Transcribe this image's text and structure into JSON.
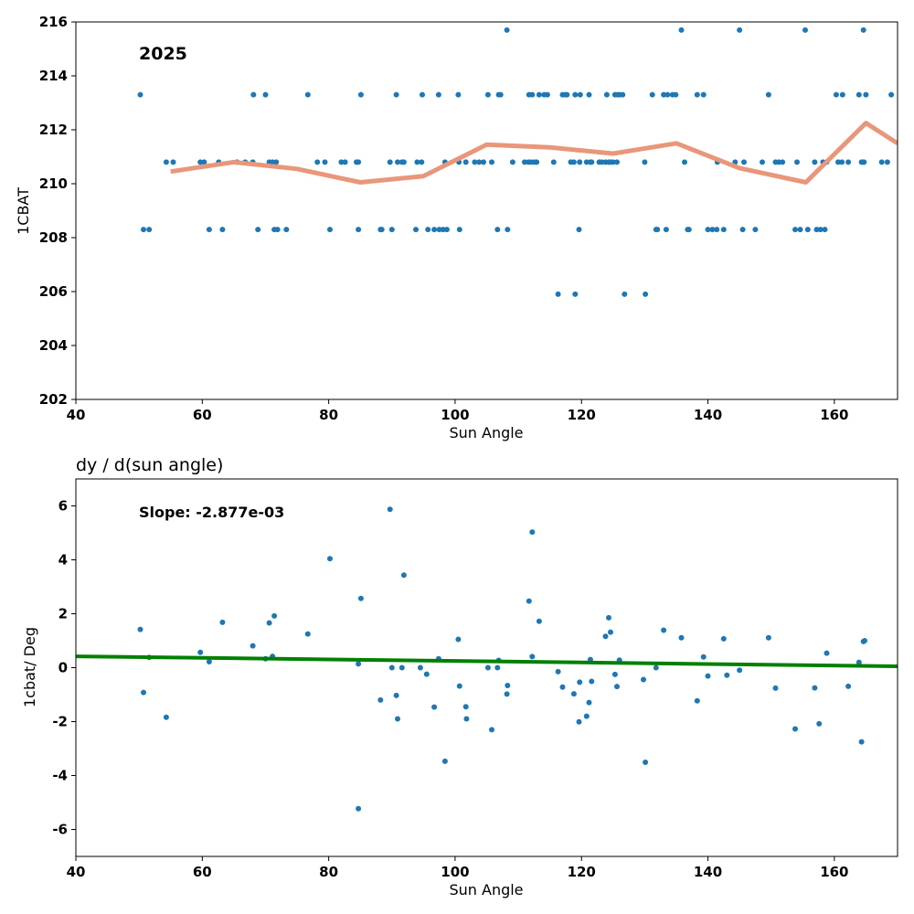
{
  "chart_data": [
    {
      "type": "scatter",
      "title": "",
      "annotation": "2025",
      "xlabel": "Sun Angle",
      "ylabel": "1CBAT",
      "xlim": [
        40,
        170
      ],
      "ylim": [
        202,
        216
      ],
      "xticks": [
        40,
        60,
        80,
        100,
        120,
        140,
        160
      ],
      "yticks": [
        202,
        204,
        206,
        208,
        210,
        212,
        214,
        216
      ],
      "grid": false,
      "point_color": "#1f77b4",
      "points": [
        [
          50.2,
          213.3
        ],
        [
          50.7,
          208.3
        ],
        [
          51.6,
          208.3
        ],
        [
          54.3,
          210.8
        ],
        [
          55.4,
          210.8
        ],
        [
          59.7,
          210.8
        ],
        [
          60.3,
          210.8
        ],
        [
          61.1,
          208.3
        ],
        [
          62.6,
          210.8
        ],
        [
          63.2,
          208.3
        ],
        [
          65.5,
          210.8
        ],
        [
          66.8,
          210.8
        ],
        [
          68.0,
          210.8
        ],
        [
          68.1,
          213.3
        ],
        [
          68.8,
          208.3
        ],
        [
          70.0,
          213.3
        ],
        [
          70.6,
          210.8
        ],
        [
          71.1,
          210.8
        ],
        [
          71.4,
          208.3
        ],
        [
          71.7,
          210.8
        ],
        [
          71.9,
          208.3
        ],
        [
          73.3,
          208.3
        ],
        [
          76.7,
          213.3
        ],
        [
          78.2,
          210.8
        ],
        [
          79.4,
          210.8
        ],
        [
          80.2,
          208.3
        ],
        [
          82.0,
          210.8
        ],
        [
          82.6,
          210.8
        ],
        [
          84.4,
          210.8
        ],
        [
          84.7,
          210.8
        ],
        [
          84.7,
          208.3
        ],
        [
          85.1,
          213.3
        ],
        [
          88.2,
          208.3
        ],
        [
          88.4,
          208.3
        ],
        [
          89.7,
          210.8
        ],
        [
          90.0,
          208.3
        ],
        [
          90.7,
          213.3
        ],
        [
          90.9,
          210.8
        ],
        [
          91.6,
          210.8
        ],
        [
          91.9,
          210.8
        ],
        [
          93.8,
          208.3
        ],
        [
          94.0,
          210.8
        ],
        [
          94.7,
          210.8
        ],
        [
          94.8,
          213.3
        ],
        [
          95.7,
          208.3
        ],
        [
          96.7,
          208.3
        ],
        [
          97.4,
          213.3
        ],
        [
          97.5,
          208.3
        ],
        [
          98.1,
          208.3
        ],
        [
          98.4,
          210.8
        ],
        [
          98.7,
          208.3
        ],
        [
          100.5,
          213.3
        ],
        [
          100.6,
          210.8
        ],
        [
          100.7,
          208.3
        ],
        [
          101.7,
          210.8
        ],
        [
          103.1,
          210.8
        ],
        [
          103.8,
          210.8
        ],
        [
          104.5,
          210.8
        ],
        [
          105.2,
          213.3
        ],
        [
          105.8,
          210.8
        ],
        [
          106.7,
          208.3
        ],
        [
          106.9,
          213.3
        ],
        [
          107.2,
          213.3
        ],
        [
          108.2,
          215.7
        ],
        [
          108.3,
          208.3
        ],
        [
          109.1,
          210.8
        ],
        [
          111.0,
          210.8
        ],
        [
          111.6,
          210.8
        ],
        [
          111.7,
          213.3
        ],
        [
          112.0,
          210.8
        ],
        [
          112.2,
          213.3
        ],
        [
          112.5,
          210.8
        ],
        [
          112.9,
          210.8
        ],
        [
          113.3,
          213.3
        ],
        [
          114.1,
          213.3
        ],
        [
          114.6,
          213.3
        ],
        [
          115.6,
          210.8
        ],
        [
          116.3,
          205.9
        ],
        [
          117.0,
          213.3
        ],
        [
          117.4,
          213.3
        ],
        [
          117.7,
          213.3
        ],
        [
          118.3,
          210.8
        ],
        [
          118.8,
          210.8
        ],
        [
          119.0,
          213.3
        ],
        [
          119.0,
          205.9
        ],
        [
          119.6,
          208.3
        ],
        [
          119.7,
          210.8
        ],
        [
          119.8,
          213.3
        ],
        [
          120.8,
          210.8
        ],
        [
          121.2,
          213.3
        ],
        [
          121.4,
          210.8
        ],
        [
          121.6,
          210.8
        ],
        [
          122.8,
          210.8
        ],
        [
          123.2,
          210.8
        ],
        [
          123.8,
          210.8
        ],
        [
          124.0,
          213.3
        ],
        [
          124.3,
          210.8
        ],
        [
          124.6,
          210.8
        ],
        [
          125.0,
          210.8
        ],
        [
          125.3,
          213.3
        ],
        [
          125.6,
          210.8
        ],
        [
          125.7,
          213.3
        ],
        [
          126.0,
          213.3
        ],
        [
          126.5,
          213.3
        ],
        [
          126.8,
          205.9
        ],
        [
          130.0,
          210.8
        ],
        [
          130.1,
          205.9
        ],
        [
          131.2,
          213.3
        ],
        [
          131.8,
          208.3
        ],
        [
          132.0,
          208.3
        ],
        [
          133.0,
          213.3
        ],
        [
          133.4,
          208.3
        ],
        [
          133.6,
          213.3
        ],
        [
          134.4,
          213.3
        ],
        [
          134.9,
          213.3
        ],
        [
          135.8,
          215.7
        ],
        [
          136.3,
          210.8
        ],
        [
          136.8,
          208.3
        ],
        [
          137.0,
          208.3
        ],
        [
          138.3,
          213.3
        ],
        [
          139.3,
          213.3
        ],
        [
          140.0,
          208.3
        ],
        [
          140.7,
          208.3
        ],
        [
          141.4,
          208.3
        ],
        [
          141.5,
          210.8
        ],
        [
          142.5,
          208.3
        ],
        [
          144.3,
          210.8
        ],
        [
          145.0,
          215.7
        ],
        [
          145.5,
          208.3
        ],
        [
          145.7,
          210.8
        ],
        [
          147.5,
          208.3
        ],
        [
          148.6,
          210.8
        ],
        [
          149.6,
          213.3
        ],
        [
          150.7,
          210.8
        ],
        [
          151.2,
          210.8
        ],
        [
          151.8,
          210.8
        ],
        [
          153.8,
          208.3
        ],
        [
          154.1,
          210.8
        ],
        [
          154.6,
          208.3
        ],
        [
          155.4,
          215.7
        ],
        [
          155.8,
          208.3
        ],
        [
          156.9,
          210.8
        ],
        [
          157.2,
          208.3
        ],
        [
          157.8,
          208.3
        ],
        [
          158.2,
          210.8
        ],
        [
          158.5,
          208.3
        ],
        [
          158.8,
          210.8
        ],
        [
          160.3,
          213.3
        ],
        [
          160.6,
          210.8
        ],
        [
          161.2,
          210.8
        ],
        [
          161.3,
          213.3
        ],
        [
          162.2,
          210.8
        ],
        [
          163.9,
          213.3
        ],
        [
          164.3,
          210.8
        ],
        [
          164.6,
          215.7
        ],
        [
          164.6,
          210.8
        ],
        [
          164.7,
          210.8
        ],
        [
          165.0,
          213.3
        ],
        [
          167.5,
          210.8
        ],
        [
          168.4,
          210.8
        ],
        [
          169.0,
          213.3
        ]
      ],
      "trend_color": "#e9967a",
      "trend": [
        [
          55.0,
          210.45
        ],
        [
          65.0,
          210.8
        ],
        [
          75.0,
          210.55
        ],
        [
          85.0,
          210.05
        ],
        [
          95.0,
          210.28
        ],
        [
          105.0,
          211.45
        ],
        [
          115.0,
          211.35
        ],
        [
          125.0,
          211.12
        ],
        [
          135.0,
          211.5
        ],
        [
          145.0,
          210.58
        ],
        [
          155.5,
          210.05
        ],
        [
          165.0,
          212.25
        ],
        [
          170.0,
          211.5
        ]
      ]
    },
    {
      "type": "scatter",
      "title": "dy / d(sun angle)",
      "annotation": "Slope: -2.877e-03",
      "xlabel": "Sun Angle",
      "ylabel": "1cbat/ Deg",
      "xlim": [
        40,
        170
      ],
      "ylim": [
        -7,
        7
      ],
      "xticks": [
        40,
        60,
        80,
        100,
        120,
        140,
        160
      ],
      "yticks": [
        -6,
        -4,
        -2,
        0,
        2,
        4,
        6
      ],
      "grid": false,
      "point_color": "#1f77b4",
      "points": [
        [
          50.2,
          1.42
        ],
        [
          50.7,
          -0.92
        ],
        [
          51.6,
          0.38
        ],
        [
          54.3,
          -1.84
        ],
        [
          59.7,
          0.57
        ],
        [
          61.1,
          0.22
        ],
        [
          63.2,
          1.68
        ],
        [
          68.0,
          0.81
        ],
        [
          70.0,
          0.33
        ],
        [
          70.6,
          1.66
        ],
        [
          71.1,
          0.42
        ],
        [
          71.4,
          1.92
        ],
        [
          76.7,
          1.25
        ],
        [
          80.2,
          4.04
        ],
        [
          84.7,
          0.14
        ],
        [
          84.7,
          -5.23
        ],
        [
          85.1,
          2.57
        ],
        [
          88.2,
          -1.2
        ],
        [
          89.7,
          5.87
        ],
        [
          90.0,
          0.0
        ],
        [
          90.7,
          -1.03
        ],
        [
          90.9,
          -1.9
        ],
        [
          91.6,
          0.0
        ],
        [
          91.9,
          3.43
        ],
        [
          94.5,
          0.0
        ],
        [
          95.5,
          -0.24
        ],
        [
          96.7,
          -1.46
        ],
        [
          97.4,
          0.33
        ],
        [
          98.4,
          -3.47
        ],
        [
          100.5,
          1.05
        ],
        [
          100.7,
          -0.68
        ],
        [
          101.7,
          -1.45
        ],
        [
          101.8,
          -1.9
        ],
        [
          105.2,
          0.0
        ],
        [
          105.8,
          -2.3
        ],
        [
          106.7,
          0.0
        ],
        [
          106.9,
          0.27
        ],
        [
          108.2,
          -0.98
        ],
        [
          108.3,
          -0.66
        ],
        [
          111.7,
          2.47
        ],
        [
          112.2,
          0.41
        ],
        [
          112.2,
          5.03
        ],
        [
          113.3,
          1.72
        ],
        [
          116.3,
          -0.15
        ],
        [
          117.0,
          -0.72
        ],
        [
          118.8,
          -0.97
        ],
        [
          119.6,
          -2.01
        ],
        [
          119.7,
          -0.54
        ],
        [
          120.8,
          -1.8
        ],
        [
          121.2,
          -1.29
        ],
        [
          121.4,
          0.3
        ],
        [
          121.6,
          -0.51
        ],
        [
          123.8,
          1.16
        ],
        [
          124.3,
          1.85
        ],
        [
          124.6,
          1.32
        ],
        [
          125.3,
          -0.25
        ],
        [
          125.6,
          -0.7
        ],
        [
          126.0,
          0.28
        ],
        [
          129.8,
          -0.44
        ],
        [
          130.1,
          -3.51
        ],
        [
          131.8,
          0.0
        ],
        [
          133.0,
          1.39
        ],
        [
          135.8,
          1.11
        ],
        [
          138.3,
          -1.23
        ],
        [
          139.3,
          0.4
        ],
        [
          140.0,
          -0.31
        ],
        [
          142.5,
          1.07
        ],
        [
          143.0,
          -0.28
        ],
        [
          145.0,
          -0.09
        ],
        [
          149.6,
          1.11
        ],
        [
          150.7,
          -0.76
        ],
        [
          153.8,
          -2.27
        ],
        [
          156.9,
          -0.75
        ],
        [
          157.6,
          -2.08
        ],
        [
          158.8,
          0.54
        ],
        [
          162.2,
          -0.69
        ],
        [
          163.9,
          0.2
        ],
        [
          164.3,
          -2.75
        ],
        [
          164.6,
          0.97
        ],
        [
          164.8,
          1.0
        ]
      ],
      "fit_color": "#008000",
      "fit": [
        [
          40,
          0.42
        ],
        [
          170,
          0.05
        ]
      ]
    }
  ]
}
